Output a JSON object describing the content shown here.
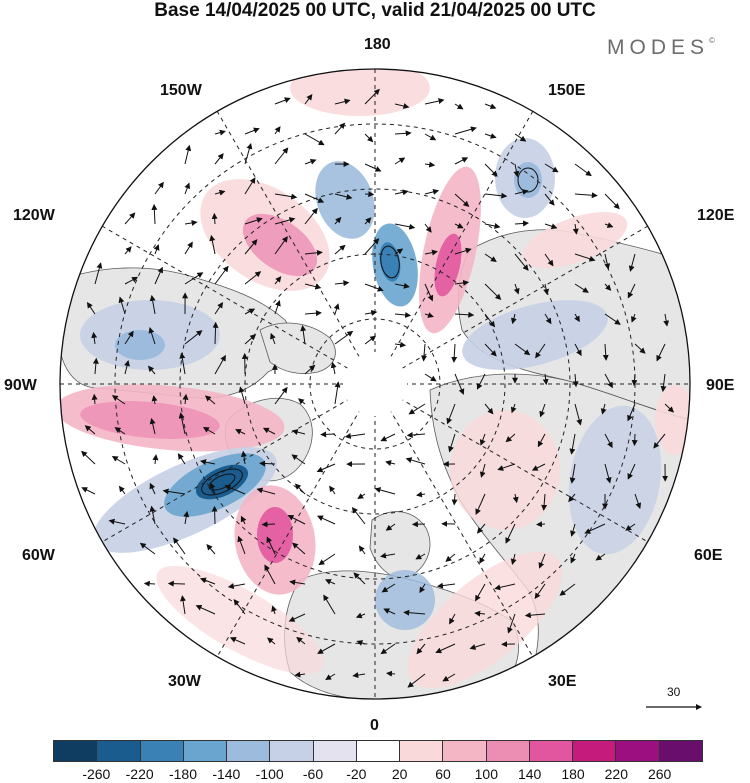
{
  "header": {
    "title": "Base 14/04/2025 00 UTC, valid 21/04/2025 00 UTC",
    "brand": "MODES",
    "brand_mark": "©"
  },
  "map": {
    "projection": "north-polar-stereographic",
    "longitude_labels": {
      "top": "180",
      "upper_left": "150W",
      "upper_right": "150E",
      "left_upper": "120W",
      "right_upper": "120E",
      "left": "90W",
      "right": "90E",
      "left_lower": "60W",
      "right_lower": "60E",
      "lower_left": "30W",
      "lower_right": "30E",
      "bottom": "0"
    },
    "reference_vector_value": "30",
    "colors": {
      "land": "#e6e6e6",
      "coast": "#5a5a5a",
      "grid": "#222222"
    }
  },
  "colorbar": {
    "colors": [
      "#0f3d62",
      "#1b5c8f",
      "#3a82b6",
      "#6aa5cf",
      "#9dbcdd",
      "#c6d0e6",
      "#e4e2ef",
      "#ffffff",
      "#fad9da",
      "#f4b6c5",
      "#ec8db3",
      "#e2569f",
      "#c51b7d",
      "#9b0f80",
      "#6a0e6e"
    ],
    "labels": [
      "-260",
      "-220",
      "-180",
      "-140",
      "-100",
      "-60",
      "-20",
      "20",
      "60",
      "100",
      "140",
      "180",
      "220",
      "260"
    ]
  }
}
